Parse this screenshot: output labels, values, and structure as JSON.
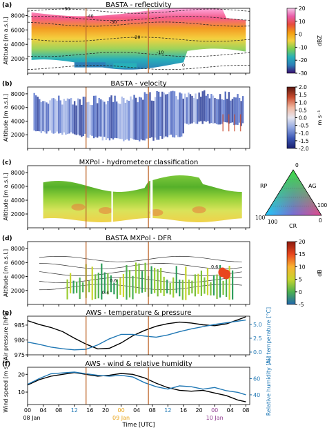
{
  "chart_data": [
    {
      "type": "heatmap",
      "panel_label": "(a)",
      "title": "BASTA - reflectivity",
      "ylabel": "Altitude [m a.s.l.]",
      "yticks": [
        2000,
        4000,
        6000,
        8000
      ],
      "ylim": [
        0,
        9000
      ],
      "colorbar": {
        "label": "dBZ",
        "ticks": [
          20,
          10,
          0,
          -10,
          -20,
          -30
        ],
        "range": [
          -30,
          20
        ],
        "colors": [
          "#3b0f70",
          "#2c7fb8",
          "#27b0b9",
          "#7ccf52",
          "#f4d03f",
          "#f39c12",
          "#e74c3c",
          "#e95ba8",
          "#f5c6e8"
        ]
      },
      "contours": [
        {
          "label": "-50",
          "altitude": 8600
        },
        {
          "label": "-40",
          "altitude": 7600
        },
        {
          "label": "-30",
          "altitude": 6800
        },
        {
          "label": "-20",
          "altitude": 4700
        },
        {
          "label": "-10",
          "altitude": 2600
        },
        {
          "label": "0",
          "altitude": 800
        }
      ]
    },
    {
      "type": "heatmap",
      "panel_label": "(b)",
      "title": "BASTA - velocity",
      "ylabel": "Altitude [m a.s.l.]",
      "yticks": [
        2000,
        4000,
        6000,
        8000
      ],
      "ylim": [
        0,
        9000
      ],
      "colorbar": {
        "label": "m s⁻¹",
        "ticks": [
          "2.0",
          "1.5",
          "1.0",
          "0.5",
          "0.0",
          "-0.5",
          "-1.0",
          "-1.5",
          "-2.0"
        ],
        "range": [
          -2,
          2
        ],
        "colors": [
          "#1a1f6e",
          "#3b57b5",
          "#8fa5e0",
          "#e6e6f0",
          "#f2b8a0",
          "#c94b2e",
          "#5a1810"
        ]
      }
    },
    {
      "type": "heatmap",
      "panel_label": "(c)",
      "title": "MXPol - hydrometeor classification",
      "ylabel": "Altitude [m a.s.l.]",
      "yticks": [
        2000,
        4000,
        6000,
        8000
      ],
      "ylim": [
        0,
        9000
      ],
      "ternary_legend": {
        "apex_labels": [
          "AG",
          "RP",
          "CR"
        ],
        "tick_labels": [
          "0",
          "100",
          "0",
          "100",
          "100"
        ]
      }
    },
    {
      "type": "heatmap",
      "panel_label": "(d)",
      "title": "BASTA MXPol - DFR",
      "ylabel": "Altitude [m a.s.l.]",
      "yticks": [
        2000,
        4000,
        6000,
        8000
      ],
      "ylim": [
        0,
        9000
      ],
      "colorbar": {
        "label": "dB",
        "ticks": [
          20,
          15,
          10,
          5,
          0,
          -5
        ],
        "range": [
          -5,
          20
        ],
        "colors": [
          "#2166ac",
          "#4cb050",
          "#c7d52e",
          "#f9b233",
          "#e8461e",
          "#8b1a0f"
        ]
      },
      "contour_labels": [
        "0.6",
        "0.6",
        "0.4"
      ]
    },
    {
      "type": "line",
      "panel_label": "(e)",
      "title": "AWS - temperature & pressure",
      "ylabel": "Air pressure [hPa]",
      "ylabel_right": "Air temperature [°C]",
      "yticks": [
        975,
        980,
        985
      ],
      "ylim": [
        975,
        988
      ],
      "yticks_right": [
        "0.0",
        "2.5",
        "5.0"
      ],
      "ylim_right": [
        -0.5,
        6.5
      ],
      "x": [
        0,
        3,
        6,
        9,
        12,
        15,
        18,
        21,
        24,
        27,
        30,
        33,
        36,
        39,
        42,
        45,
        48,
        51,
        54,
        56
      ],
      "series": [
        {
          "name": "Air pressure",
          "axis": "left",
          "color": "#000000",
          "values": [
            986.5,
            985.2,
            984.2,
            982.8,
            980.6,
            978.6,
            977.0,
            977.2,
            979.0,
            981.4,
            983.2,
            984.6,
            985.5,
            986.0,
            985.7,
            985.1,
            984.8,
            985.4,
            986.8,
            987.8
          ]
        },
        {
          "name": "Air temperature",
          "axis": "right",
          "color": "#1f77b4",
          "values": [
            1.8,
            1.4,
            0.9,
            0.6,
            0.4,
            0.5,
            1.3,
            2.4,
            3.2,
            3.2,
            2.9,
            2.7,
            3.1,
            3.7,
            4.2,
            4.6,
            5.0,
            5.3,
            5.6,
            5.8
          ]
        }
      ]
    },
    {
      "type": "line",
      "panel_label": "(f)",
      "title": "AWS - wind & relative humidity",
      "ylabel": "Wind speed [m s⁻¹]",
      "ylabel_right": "Relative humidity [%]",
      "yticks": [
        10,
        20
      ],
      "ylim": [
        3,
        24
      ],
      "yticks_right": [
        40,
        60
      ],
      "ylim_right": [
        28,
        74
      ],
      "x": [
        0,
        3,
        6,
        9,
        12,
        15,
        18,
        21,
        24,
        27,
        30,
        33,
        36,
        39,
        42,
        45,
        48,
        51,
        54,
        56
      ],
      "series": [
        {
          "name": "Wind speed",
          "axis": "left",
          "color": "#000000",
          "values": [
            14,
            17,
            19,
            20,
            21,
            20,
            19,
            19.5,
            20.5,
            20,
            18,
            15,
            12.5,
            11,
            10.5,
            11,
            9.5,
            8,
            5.5,
            4.5
          ]
        },
        {
          "name": "Relative humidity",
          "axis": "right",
          "color": "#1f77b4",
          "values": [
            53,
            60,
            66,
            67,
            68,
            66,
            64,
            63,
            64,
            62,
            55,
            50,
            47,
            51,
            50,
            47,
            49,
            45,
            43,
            40
          ]
        }
      ]
    }
  ],
  "x_axis": {
    "label": "Time [UTC]",
    "xlim": [
      0,
      57
    ],
    "ticks": [
      {
        "x": 0,
        "label": "00",
        "color": "#000000"
      },
      {
        "x": 4,
        "label": "04",
        "color": "#000000"
      },
      {
        "x": 8,
        "label": "08",
        "color": "#000000"
      },
      {
        "x": 12,
        "label": "12",
        "color": "#1f77b4"
      },
      {
        "x": 16,
        "label": "16",
        "color": "#000000"
      },
      {
        "x": 20,
        "label": "20",
        "color": "#000000"
      },
      {
        "x": 24,
        "label": "00",
        "color": "#e8a317"
      },
      {
        "x": 28,
        "label": "04",
        "color": "#000000"
      },
      {
        "x": 32,
        "label": "08",
        "color": "#000000"
      },
      {
        "x": 36,
        "label": "12",
        "color": "#1f77b4"
      },
      {
        "x": 40,
        "label": "16",
        "color": "#000000"
      },
      {
        "x": 44,
        "label": "20",
        "color": "#000000"
      },
      {
        "x": 48,
        "label": "00",
        "color": "#8e3a8e"
      },
      {
        "x": 52,
        "label": "04",
        "color": "#000000"
      },
      {
        "x": 56,
        "label": "08",
        "color": "#000000"
      }
    ],
    "date_labels": [
      {
        "x": 0,
        "label": "08 Jan",
        "color": "#000000"
      },
      {
        "x": 24,
        "label": "09 Jan",
        "color": "#e8a317"
      },
      {
        "x": 48,
        "label": "10 Jan",
        "color": "#8e3a8e"
      }
    ],
    "markers": [
      15,
      31
    ]
  }
}
